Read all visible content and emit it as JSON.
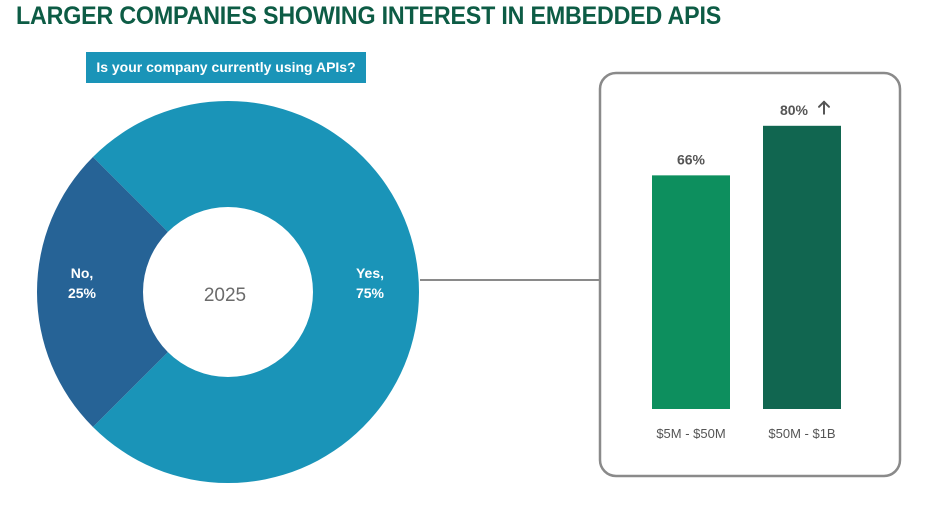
{
  "title": "LARGER COMPANIES SHOWING INTEREST IN EMBEDDED APIS",
  "question": "Is your company currently using APIs?",
  "colors": {
    "title": "#0d5c45",
    "question_bg": "#1a94b8",
    "yes": "#1a94b8",
    "no": "#266396",
    "bar_1": "#0d8f5e",
    "bar_2": "#116650",
    "frame": "#8a8a8a"
  },
  "chart_data": [
    {
      "type": "pie",
      "variant": "donut",
      "center_label": "2025",
      "slices": [
        {
          "label_line1": "Yes,",
          "label_line2": "75%",
          "value": 75
        },
        {
          "label_line1": "No,",
          "label_line2": "25%",
          "value": 25
        }
      ]
    },
    {
      "type": "bar",
      "categories": [
        "$5M - $50M",
        "$50M - $1B"
      ],
      "values": [
        66,
        80
      ],
      "value_labels": [
        "66%",
        "80%"
      ],
      "highlight_icon": "up-arrow-icon",
      "ylim": [
        0,
        100
      ]
    }
  ]
}
